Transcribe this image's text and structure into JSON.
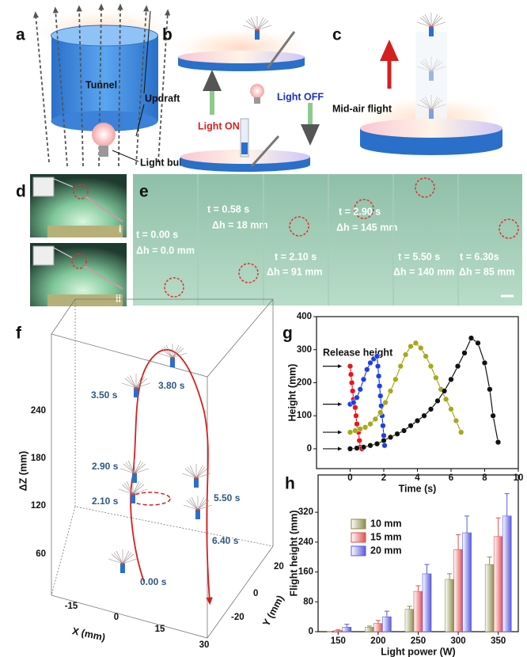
{
  "panel_a": {
    "label": "a",
    "tunnel": "Tunnel",
    "updraft": "Updraft",
    "bulb": "Light bulb"
  },
  "panel_b": {
    "label": "b",
    "on": "Light ON",
    "off": "Light OFF"
  },
  "panel_c": {
    "label": "c",
    "flight": "Mid-air flight"
  },
  "panel_d": {
    "label": "d",
    "i": "i",
    "ii": "ii"
  },
  "panel_e": {
    "label": "e",
    "frames": [
      {
        "t": "t = 0.00 s",
        "dh": "Δh = 0.0 mm"
      },
      {
        "t": "t = 0.58 s",
        "dh": "Δh = 18 mm"
      },
      {
        "t": "t = 2.10 s",
        "dh": "Δh = 91 mm"
      },
      {
        "t": "t = 2.90 s",
        "dh": "Δh = 145 mm"
      },
      {
        "t": "t = 5.50 s",
        "dh": "Δh = 140 mm"
      },
      {
        "t": "t = 6.30s",
        "dh": "Δh = 85 mm"
      }
    ]
  },
  "panel_f": {
    "label": "f",
    "z_label": "ΔZ (mm)",
    "z_ticks": [
      60,
      120,
      180,
      240
    ],
    "x_label": "X (mm)",
    "x_ticks": [
      -15,
      0,
      15,
      30
    ],
    "y_label": "Y (mm)",
    "y_ticks": [
      20,
      0,
      -20
    ],
    "times": [
      "3.50 s",
      "3.80 s",
      "2.90 s",
      "5.50 s",
      "2.10 s",
      "6.40 s",
      "0.00 s"
    ]
  },
  "chart_data": [
    {
      "type": "line",
      "label": "g",
      "annotation": "Release height",
      "xlabel": "Time (s)",
      "ylabel": "Height (mm)",
      "xlim": [
        -2,
        10
      ],
      "xticks": [
        0,
        2,
        4,
        6,
        8,
        10
      ],
      "ylim": [
        -60,
        400
      ],
      "yticks": [
        0,
        100,
        200,
        300,
        400
      ],
      "series": [
        {
          "color": "#e8151b",
          "x": [
            0,
            0.05,
            0.1,
            0.15,
            0.2,
            0.3,
            0.35,
            0.4,
            0.5,
            0.55,
            0.6,
            0.7
          ],
          "values": [
            250,
            225,
            200,
            175,
            150,
            125,
            100,
            75,
            50,
            25,
            5,
            0
          ]
        },
        {
          "color": "#1f3fe0",
          "x": [
            0,
            0.2,
            0.4,
            0.6,
            0.8,
            1.0,
            1.2,
            1.4,
            1.6,
            1.65,
            1.7,
            1.75,
            1.8,
            1.85,
            1.9,
            1.95,
            2.0,
            2.05
          ],
          "values": [
            135,
            140,
            155,
            180,
            210,
            240,
            260,
            272,
            280,
            250,
            220,
            190,
            160,
            130,
            100,
            70,
            40,
            10
          ]
        },
        {
          "color": "#a8a81a",
          "x": [
            0,
            0.3,
            0.6,
            0.9,
            1.2,
            1.5,
            1.8,
            2.1,
            2.4,
            2.7,
            3.0,
            3.3,
            3.6,
            3.9,
            4.2,
            4.5,
            4.8,
            5.1,
            5.4,
            5.7,
            6.0,
            6.3,
            6.6
          ],
          "values": [
            50,
            55,
            60,
            65,
            75,
            90,
            110,
            140,
            175,
            210,
            250,
            285,
            310,
            320,
            305,
            280,
            250,
            215,
            180,
            150,
            120,
            85,
            50
          ]
        },
        {
          "color": "#111111",
          "x": [
            0,
            0.4,
            0.8,
            1.2,
            1.6,
            2.0,
            2.4,
            2.8,
            3.2,
            3.6,
            4.0,
            4.4,
            4.8,
            5.2,
            5.6,
            6.0,
            6.4,
            6.8,
            7.2,
            7.6,
            8.0,
            8.3,
            8.5,
            8.8
          ],
          "values": [
            0,
            2,
            5,
            10,
            15,
            25,
            35,
            45,
            55,
            70,
            85,
            100,
            120,
            145,
            175,
            210,
            250,
            290,
            335,
            320,
            260,
            180,
            100,
            20
          ]
        }
      ]
    },
    {
      "type": "bar",
      "label": "h",
      "xlabel": "Light power (W)",
      "ylabel": "Flight height (mm)",
      "categories": [
        "150",
        "200",
        "250",
        "300",
        "350"
      ],
      "ylim": [
        0,
        420
      ],
      "yticks": [
        0,
        80,
        160,
        240,
        320
      ],
      "series": [
        {
          "name": "10 mm",
          "color": "#8b8b4a",
          "values": [
            0,
            12,
            60,
            140,
            180
          ],
          "errors": [
            0,
            3,
            8,
            15,
            20
          ]
        },
        {
          "name": "15 mm",
          "color": "#e05050",
          "values": [
            3,
            22,
            108,
            220,
            255
          ],
          "errors": [
            2,
            8,
            15,
            40,
            50
          ]
        },
        {
          "name": "20 mm",
          "color": "#5a5ae0",
          "values": [
            12,
            40,
            155,
            265,
            310
          ],
          "errors": [
            8,
            15,
            25,
            45,
            60
          ]
        }
      ]
    }
  ]
}
